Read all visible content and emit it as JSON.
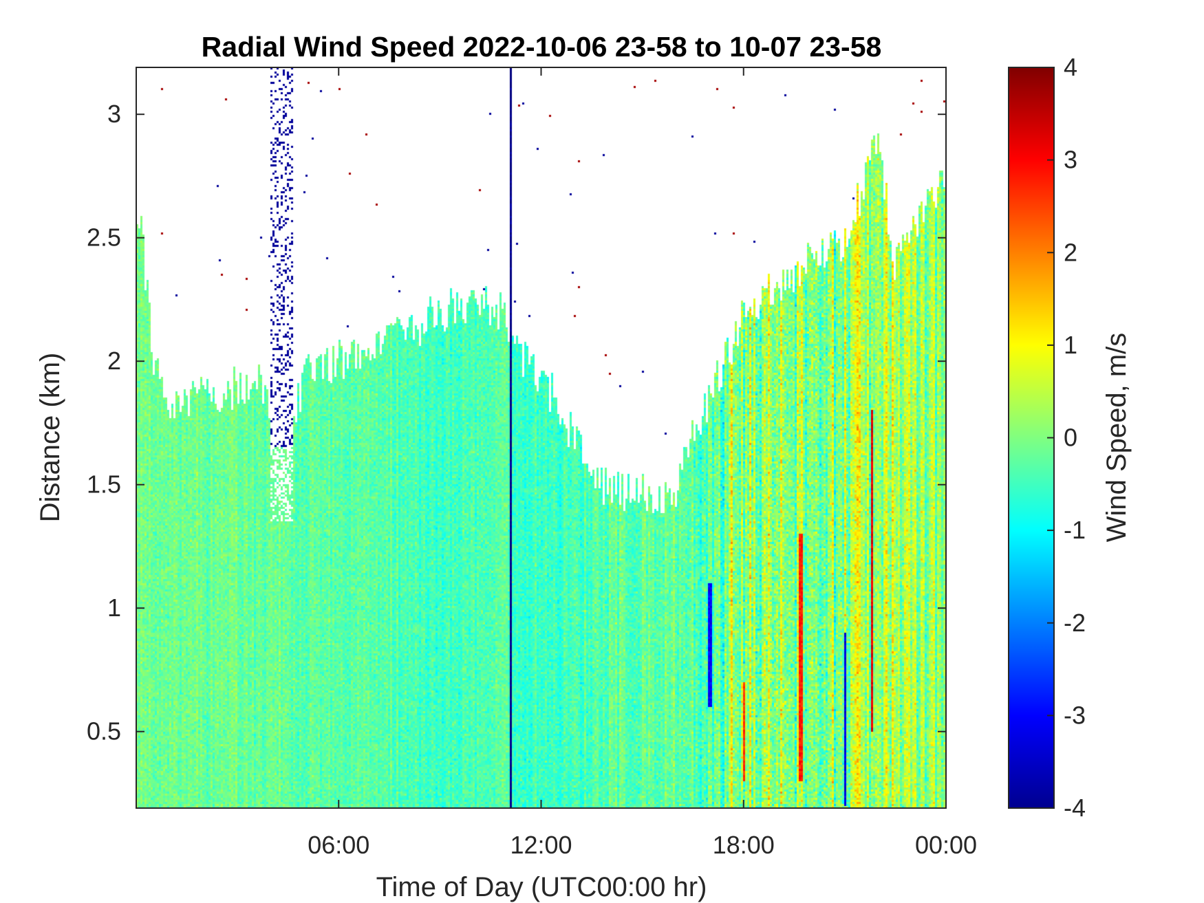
{
  "chart_data": {
    "type": "heatmap",
    "title": "Radial Wind Speed 2022-10-06 23-58 to 10-07 23-58",
    "xlabel": "Time of Day (UTC00:00 hr)",
    "ylabel": "Distance (km)",
    "colorbar_label": "Wind Speed, m/s",
    "colormap": "jet",
    "xlim": [
      0,
      24
    ],
    "ylim": [
      0.19,
      3.19
    ],
    "clim": [
      -4,
      4
    ],
    "x_ticks": [
      6,
      12,
      18,
      24
    ],
    "x_tick_labels": [
      "06:00",
      "12:00",
      "18:00",
      "00:00"
    ],
    "y_ticks": [
      0.5,
      1,
      1.5,
      2,
      2.5,
      3
    ],
    "y_tick_labels": [
      "0.5",
      "1",
      "1.5",
      "2",
      "2.5",
      "3"
    ],
    "colorbar_ticks": [
      -4,
      -3,
      -2,
      -1,
      0,
      1,
      2,
      3,
      4
    ],
    "colorbar_tick_labels": [
      "-4",
      "-3",
      "-2",
      "-1",
      "0",
      "1",
      "2",
      "3",
      "4"
    ],
    "grid": false,
    "signal_top_km": {
      "hours": [
        0,
        0.1,
        0.5,
        1,
        2,
        3,
        3.9,
        4.2,
        4.6,
        5,
        6,
        7,
        8,
        9,
        10,
        11,
        11.2,
        12,
        13,
        13.8,
        14.5,
        15.5,
        16,
        17,
        18,
        19,
        20,
        21,
        22,
        22.5,
        23,
        24
      ],
      "values": [
        2.5,
        2.6,
        2.0,
        1.85,
        1.85,
        1.9,
        1.9,
        1.6,
        1.65,
        2.0,
        2.0,
        2.05,
        2.1,
        2.2,
        2.25,
        2.2,
        2.05,
        1.95,
        1.7,
        1.5,
        1.48,
        1.45,
        1.5,
        1.85,
        2.2,
        2.3,
        2.4,
        2.5,
        2.9,
        2.4,
        2.55,
        2.75
      ]
    },
    "mean_speed_m_s": {
      "hours": [
        0,
        3,
        4,
        6,
        8,
        9,
        9.5,
        11,
        11.2,
        13,
        14,
        16,
        17,
        17.5,
        18,
        19,
        20,
        21,
        22,
        23,
        24
      ],
      "values": [
        -0.1,
        -0.15,
        -0.2,
        -0.3,
        -0.35,
        -0.6,
        -0.4,
        -0.3,
        -0.6,
        -0.5,
        -0.3,
        -0.2,
        -0.3,
        -0.1,
        0.2,
        0.1,
        0.0,
        -0.1,
        0.3,
        0.2,
        0.1
      ]
    },
    "variability_m_s": {
      "hours": [
        0,
        6,
        12,
        16,
        17.5,
        18,
        20,
        22,
        24
      ],
      "values": [
        0.25,
        0.25,
        0.3,
        0.4,
        0.9,
        1.2,
        1.1,
        1.0,
        0.7
      ]
    },
    "strong_streaks": [
      {
        "hour": 11.1,
        "speed_m_s": -4,
        "from_km": 0.19,
        "to_km": 3.19
      },
      {
        "hour": 21.8,
        "speed_m_s": 3.2,
        "from_km": 0.5,
        "to_km": 1.8
      },
      {
        "hour": 19.7,
        "speed_m_s": 2.8,
        "from_km": 0.3,
        "to_km": 1.3
      },
      {
        "hour": 18.0,
        "speed_m_s": 2.6,
        "from_km": 0.3,
        "to_km": 0.7
      },
      {
        "hour": 17.0,
        "speed_m_s": -3.0,
        "from_km": 0.6,
        "to_km": 1.1
      },
      {
        "hour": 21.0,
        "speed_m_s": -3.2,
        "from_km": 0.2,
        "to_km": 0.9
      }
    ],
    "scatter_band": {
      "from_hour": 4.0,
      "to_hour": 4.65,
      "from_km": 1.65,
      "to_km": 3.19,
      "speed_m_s": -3.8
    }
  }
}
